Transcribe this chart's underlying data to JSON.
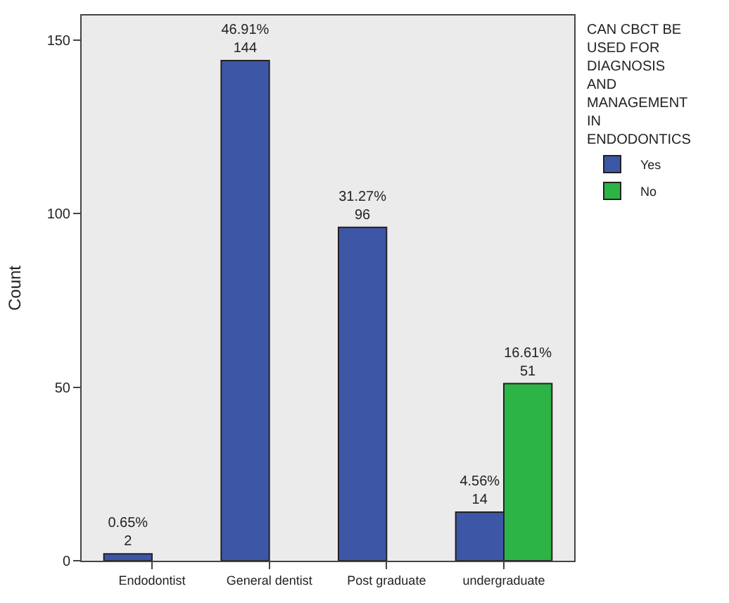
{
  "chart_data": {
    "type": "bar",
    "ylabel": "Count",
    "legend_title": "CAN CBCT BE\nUSED FOR\nDIAGNOSIS\nAND\nMANAGEMENT\nIN\nENDODONTICS",
    "categories": [
      "Endodontist",
      "General dentist",
      "Post graduate",
      "undergraduate"
    ],
    "series": [
      {
        "name": "Yes",
        "color": "#3e56a6",
        "values": [
          2,
          144,
          96,
          14
        ],
        "value_labels": [
          "0.65%\n2",
          "46.91%\n144",
          "31.27%\n96",
          "4.56%\n14"
        ]
      },
      {
        "name": "No",
        "color": "#2db446",
        "values": [
          null,
          null,
          null,
          51
        ],
        "value_labels": [
          null,
          null,
          null,
          "16.61%\n51"
        ]
      }
    ],
    "ylim": [
      0,
      157
    ],
    "yticks": [
      0,
      50,
      100,
      150
    ],
    "grid": false,
    "legend": "top right"
  }
}
